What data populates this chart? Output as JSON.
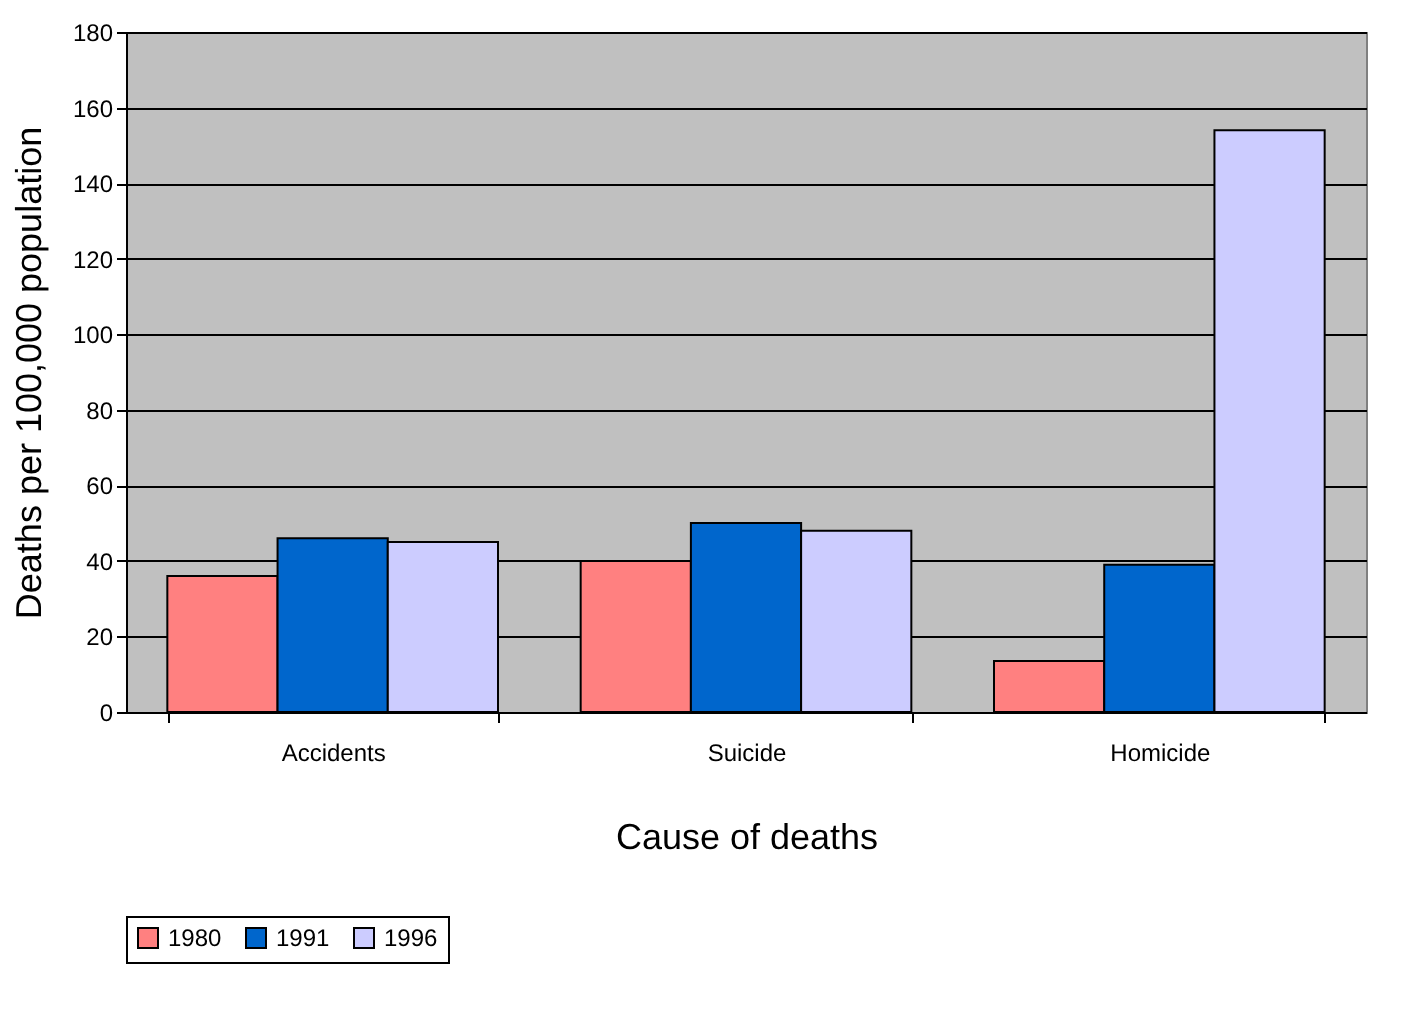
{
  "chart_data": {
    "type": "bar",
    "xlabel": "Cause of deaths",
    "ylabel": "Deaths per 100,000 population",
    "categories": [
      "Accidents",
      "Suicide",
      "Homicide"
    ],
    "series": [
      {
        "name": "1980",
        "color": "#ff8080",
        "values": [
          36,
          40,
          13.5
        ]
      },
      {
        "name": "1991",
        "color": "#0066cc",
        "values": [
          46,
          50,
          39
        ]
      },
      {
        "name": "1996",
        "color": "#ccccff",
        "values": [
          45,
          48,
          154
        ]
      }
    ],
    "ylim": [
      0,
      180
    ],
    "yticks": [
      0,
      20,
      40,
      60,
      80,
      100,
      120,
      140,
      160,
      180
    ],
    "grid": "y",
    "legend": "bottom"
  }
}
